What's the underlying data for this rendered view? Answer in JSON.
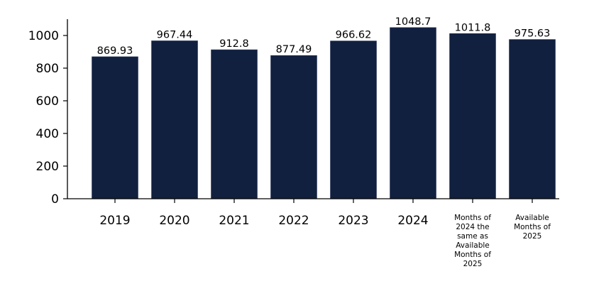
{
  "chart_data": {
    "type": "bar",
    "title": "",
    "xlabel": "",
    "ylabel": "",
    "categories": [
      "2019",
      "2020",
      "2021",
      "2022",
      "2023",
      "2024",
      "Months of\n2024 the\nsame as\nAvailable\nMonths of\n2025",
      "Available\nMonths of\n2025"
    ],
    "values": [
      869.93,
      967.44,
      912.8,
      877.49,
      966.62,
      1048.7,
      1011.8,
      975.63
    ],
    "value_labels": [
      "869.93",
      "967.44",
      "912.8",
      "877.49",
      "966.62",
      "1048.7",
      "1011.8",
      "975.63"
    ],
    "ylim": [
      0,
      1100
    ],
    "yticks": [
      0,
      200,
      400,
      600,
      800,
      1000
    ],
    "grid": false,
    "legend": "none",
    "bar_color": "#12203f"
  }
}
